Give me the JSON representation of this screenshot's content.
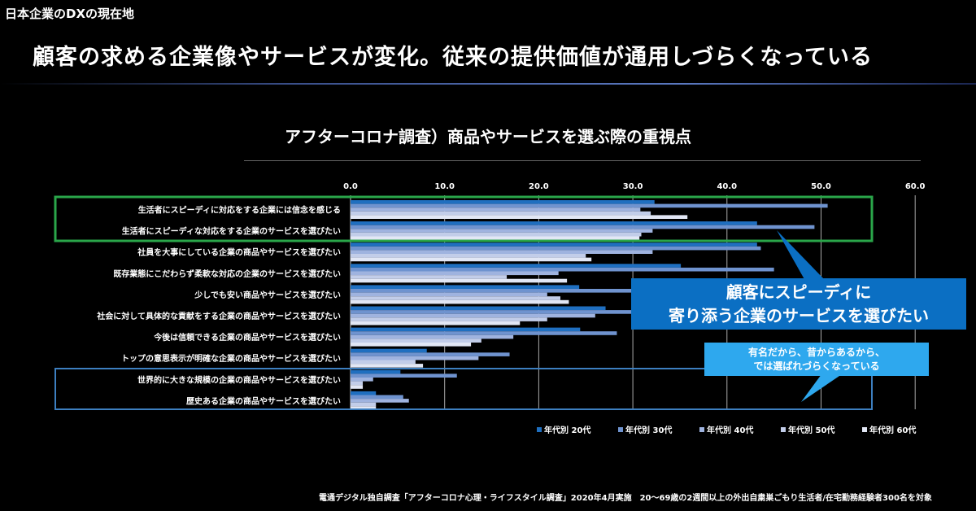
{
  "section_label": "日本企業のDXの現在地",
  "headline": "顧客の求める企業像やサービスが変化。従来の提供価値が通用しづらくなっている",
  "callouts": {
    "primary_line1": "顧客にスピーディに",
    "primary_line2": "寄り添う企業のサービスを選びたい",
    "secondary_line1": "有名だから、昔からあるから、",
    "secondary_line2": "では選ばれづらくなっている"
  },
  "footer": "電通デジタル独自調査「アフターコロナ心理・ライフスタイル調査」2020年4月実施　20〜69歳の2週間以上の外出自粛巣ごもり生活者/在宅勤務経験者300名を対象",
  "chart_data": {
    "type": "bar",
    "orientation": "horizontal",
    "title": "アフターコロナ調査）商品やサービスを選ぶ際の重視点",
    "xlim": [
      0,
      60
    ],
    "tick_labels": [
      "0.0",
      "10.0",
      "20.0",
      "30.0",
      "40.0",
      "50.0",
      "60.0"
    ],
    "grid": true,
    "legend_position": "bottom-right",
    "categories": [
      "生活者にスピーディに対応をする企業には信念を感じる",
      "生活者にスピーディな対応をする企業のサービスを選びたい",
      "社員を大事にしている企業の商品やサービスを選びたい",
      "既存業態にこだわらず柔軟な対応の企業のサービスを選びたい",
      "少しでも安い商品やサービスを選びたい",
      "社会に対して具体的な貢献をする企業の商品やサービスを選びたい",
      "今後は信頼できる企業の商品やサービスを選びたい",
      "トップの意思表示が明確な企業の商品やサービスを選びたい",
      "世界的に大きな規模の企業の商品やサービスを選びたい",
      "歴史ある企業の商品やサービスを選びたい"
    ],
    "series": [
      {
        "name": "年代別 20代",
        "color": "#1f6fc0",
        "values": [
          32.3,
          43.2,
          43.2,
          35.1,
          24.3,
          27.1,
          24.4,
          8.1,
          5.3,
          2.7
        ]
      },
      {
        "name": "年代別 30代",
        "color": "#6f93cf",
        "values": [
          50.7,
          49.3,
          43.6,
          45.0,
          31.0,
          31.0,
          28.3,
          16.9,
          11.3,
          5.6
        ]
      },
      {
        "name": "年代別 40代",
        "color": "#9fb3df",
        "values": [
          30.8,
          32.1,
          32.1,
          22.1,
          20.9,
          26.0,
          17.3,
          13.6,
          2.4,
          6.2
        ]
      },
      {
        "name": "年代別 50代",
        "color": "#c2cde9",
        "values": [
          31.9,
          30.9,
          25.0,
          16.6,
          22.3,
          20.9,
          13.9,
          6.9,
          1.3,
          2.7
        ]
      },
      {
        "name": "年代別 60代",
        "color": "#e2e7f5",
        "values": [
          35.8,
          30.7,
          25.6,
          23.0,
          23.2,
          18.0,
          12.8,
          7.7,
          1.3,
          2.7
        ]
      }
    ],
    "highlight_colors": {
      "speed_box": "#2aa64a",
      "legacy_box": "#3d7fc0"
    }
  }
}
